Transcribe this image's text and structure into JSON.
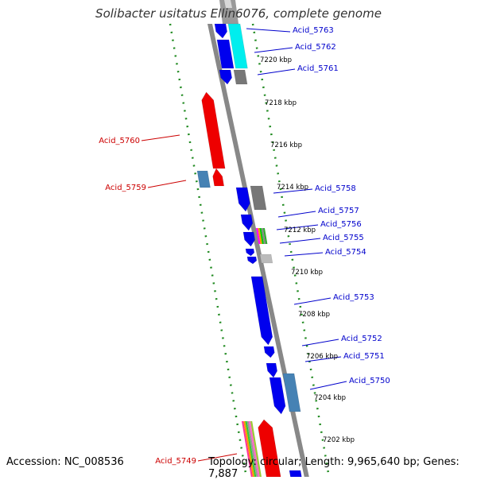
{
  "title": "Solibacter usitatus Ellin6076, complete genome",
  "accession": "Accession: NC_008536",
  "topology": "Topology: circular; Length: 9,965,640 bp; Genes: 7,887",
  "colors": {
    "forward_gene": "#0000ee",
    "reverse_gene": "#ee0000",
    "gray_gene": "#777777",
    "cyan_gene": "#00eeee",
    "steelblue_gene": "#4682b4",
    "backbone": "#888888",
    "tick_dots": "#228b22",
    "blue_label": "#0000cc",
    "red_label": "#cc0000"
  },
  "kbp_labels": [
    "7220 kbp",
    "7218 kbp",
    "7216 kbp",
    "7214 kbp",
    "7212 kbp",
    "7210 kbp",
    "7208 kbp",
    "7206 kbp",
    "7204 kbp",
    "7202 kbp"
  ],
  "genes": [
    {
      "name": "Acid_5763",
      "strand": "forward"
    },
    {
      "name": "Acid_5762",
      "strand": "forward"
    },
    {
      "name": "Acid_5761",
      "strand": "forward"
    },
    {
      "name": "Acid_5760",
      "strand": "reverse"
    },
    {
      "name": "Acid_5759",
      "strand": "reverse"
    },
    {
      "name": "Acid_5758",
      "strand": "forward"
    },
    {
      "name": "Acid_5757",
      "strand": "forward"
    },
    {
      "name": "Acid_5756",
      "strand": "forward"
    },
    {
      "name": "Acid_5755",
      "strand": "forward"
    },
    {
      "name": "Acid_5754",
      "strand": "forward"
    },
    {
      "name": "Acid_5753",
      "strand": "forward"
    },
    {
      "name": "Acid_5752",
      "strand": "forward"
    },
    {
      "name": "Acid_5751",
      "strand": "forward"
    },
    {
      "name": "Acid_5750",
      "strand": "forward"
    },
    {
      "name": "Acid_5749",
      "strand": "reverse"
    }
  ]
}
